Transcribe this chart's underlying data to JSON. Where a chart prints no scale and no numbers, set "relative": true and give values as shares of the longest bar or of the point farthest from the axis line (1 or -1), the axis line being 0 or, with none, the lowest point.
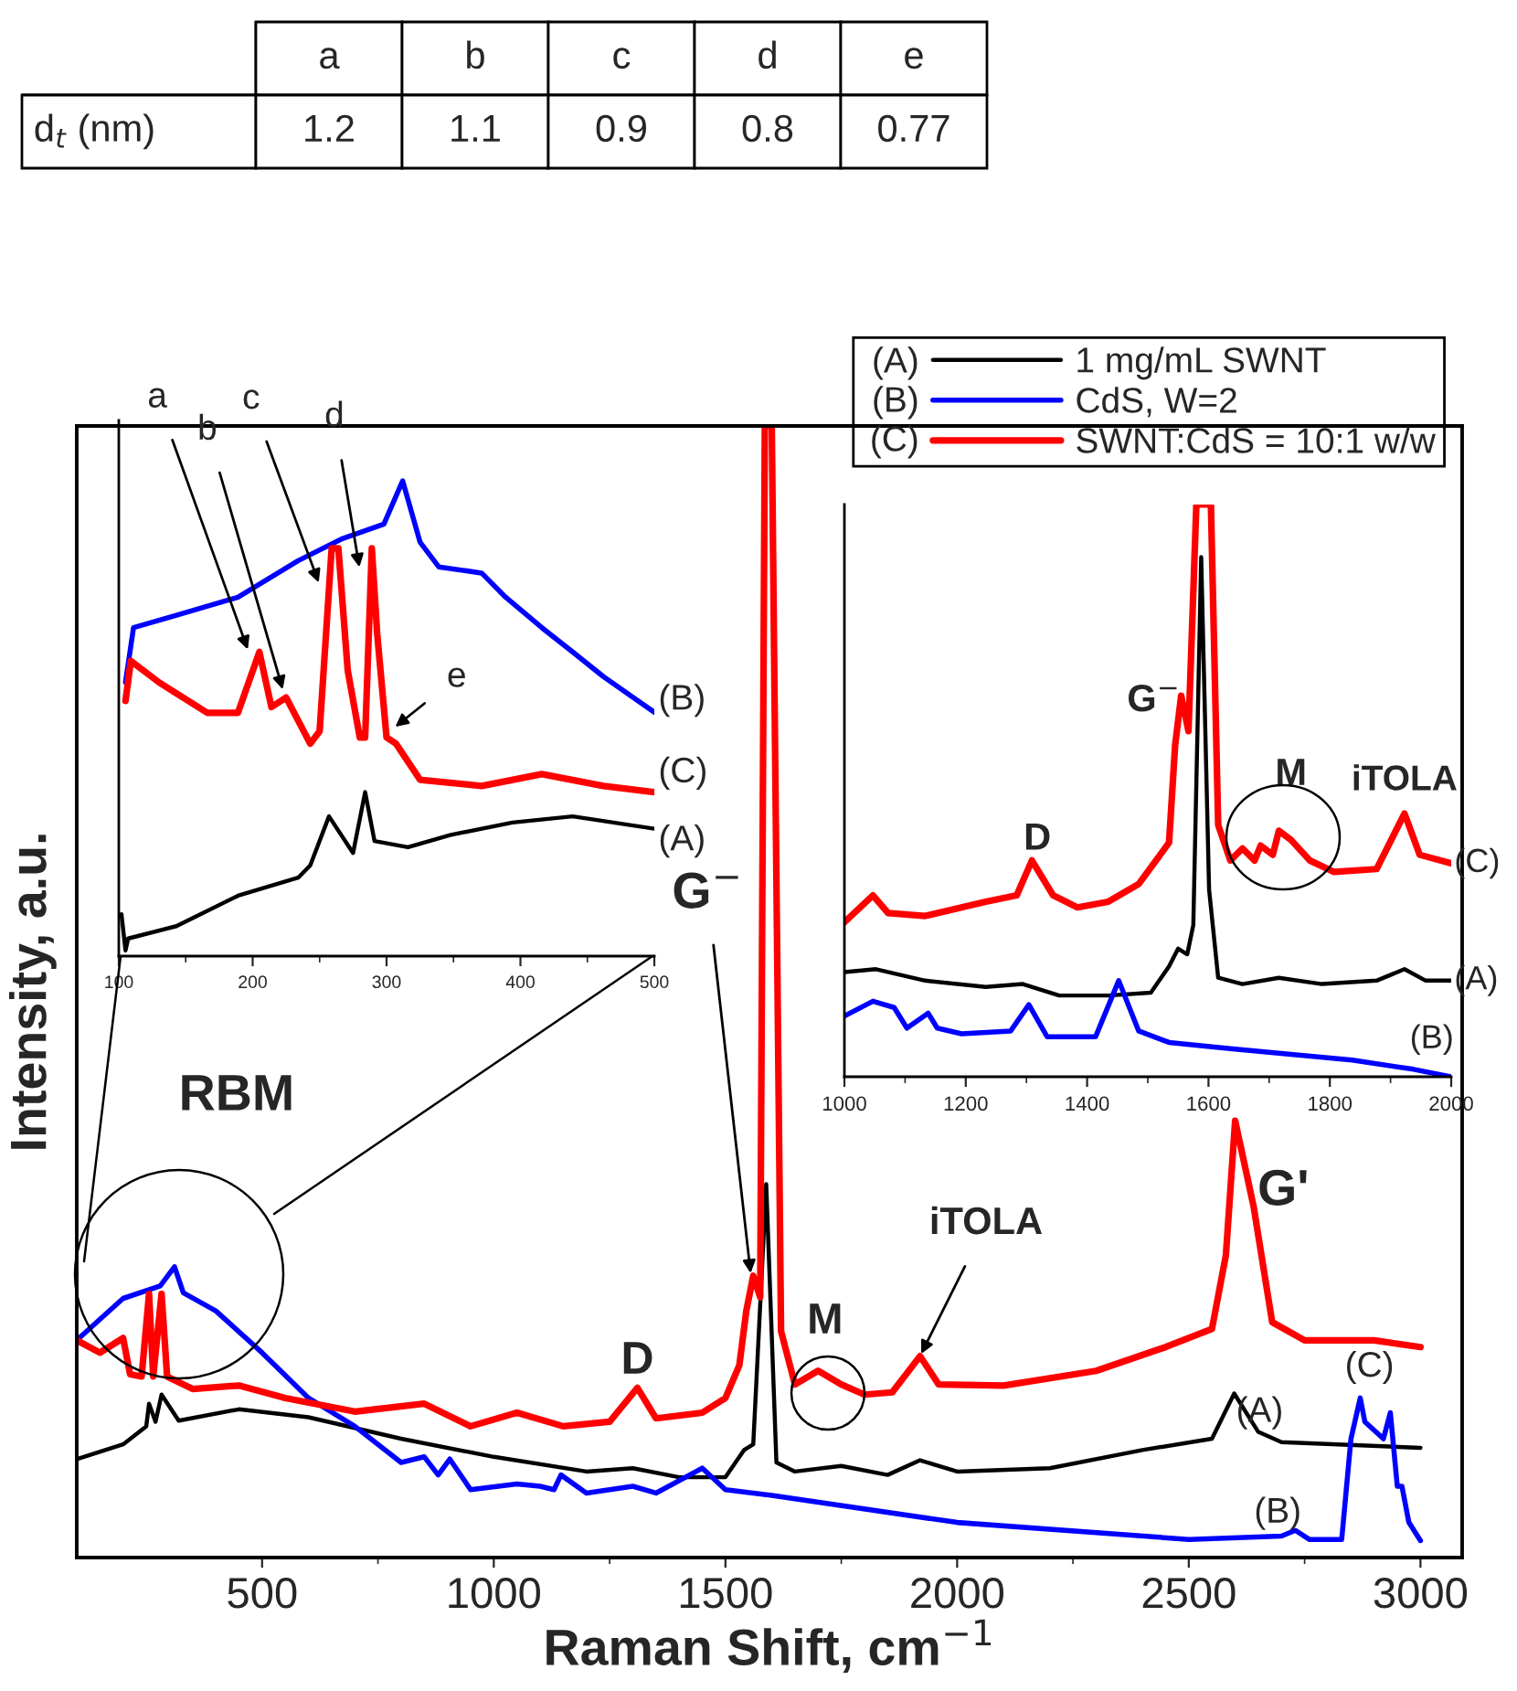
{
  "chart_data": [
    {
      "type": "other",
      "categories": [
        "a",
        "b",
        "c",
        "d",
        "e"
      ],
      "values": [
        1.2,
        1.1,
        0.9,
        0.8,
        0.77
      ],
      "data_labels": true,
      "ylabel": "d$_{t}$ (nm)"
    },
    {
      "type": "line",
      "relative": true,
      "xlabel": "Raman Shift, cm$^{−1}$",
      "ylabel": "Intensity, a.u.",
      "xlim": [
        100,
        3090
      ],
      "xticks": [
        500,
        1000,
        1500,
        2000,
        2500,
        3000
      ],
      "legend": "top right",
      "tick_labels": "x",
      "series": [
        {
          "name": "1 mg/mL SWNT",
          "color": "#000000",
          "x": [
            100,
            200,
            250,
            256,
            270,
            283,
            320,
            450,
            600,
            800,
            1000,
            1200,
            1300,
            1400,
            1500,
            1540,
            1560,
            1588,
            1610,
            1650,
            1750,
            1850,
            1920,
            2000,
            2200,
            2400,
            2550,
            2598,
            2650,
            2700,
            3000
          ],
          "values": [
            0.087,
            0.1,
            0.116,
            0.136,
            0.12,
            0.144,
            0.121,
            0.131,
            0.124,
            0.105,
            0.089,
            0.076,
            0.079,
            0.071,
            0.071,
            0.095,
            0.1,
            0.33,
            0.084,
            0.076,
            0.081,
            0.073,
            0.086,
            0.076,
            0.079,
            0.095,
            0.105,
            0.145,
            0.111,
            0.102,
            0.097
          ]
        },
        {
          "name": "CdS, W=2",
          "color": "#0000ff",
          "x": [
            100,
            200,
            280,
            311,
            330,
            400,
            500,
            600,
            700,
            800,
            850,
            880,
            905,
            950,
            1050,
            1100,
            1130,
            1145,
            1200,
            1300,
            1350,
            1450,
            1500,
            1600,
            2000,
            2500,
            2700,
            2730,
            2760,
            2830,
            2850,
            2870,
            2880,
            2920,
            2935,
            2950,
            2960,
            2975,
            3000
          ],
          "values": [
            0.192,
            0.229,
            0.24,
            0.257,
            0.234,
            0.218,
            0.181,
            0.141,
            0.116,
            0.084,
            0.089,
            0.073,
            0.087,
            0.06,
            0.065,
            0.063,
            0.06,
            0.073,
            0.057,
            0.063,
            0.057,
            0.079,
            0.06,
            0.055,
            0.031,
            0.016,
            0.019,
            0.024,
            0.016,
            0.016,
            0.105,
            0.141,
            0.12,
            0.105,
            0.128,
            0.063,
            0.063,
            0.031,
            0.015
          ]
        },
        {
          "name": "SWNT:CdS = 10:1 w/w",
          "color": "#ff0000",
          "x": [
            100,
            150,
            200,
            215,
            240,
            256,
            265,
            283,
            295,
            350,
            450,
            550,
            700,
            850,
            950,
            1050,
            1150,
            1250,
            1310,
            1350,
            1450,
            1500,
            1530,
            1545,
            1560,
            1575,
            1585,
            1600,
            1620,
            1650,
            1700,
            1750,
            1800,
            1860,
            1920,
            1960,
            2100,
            2300,
            2450,
            2550,
            2580,
            2600,
            2640,
            2680,
            2750,
            2900,
            3000
          ],
          "values": [
            0.192,
            0.181,
            0.194,
            0.162,
            0.16,
            0.233,
            0.16,
            0.233,
            0.16,
            0.149,
            0.152,
            0.141,
            0.129,
            0.136,
            0.116,
            0.128,
            0.116,
            0.12,
            0.15,
            0.123,
            0.128,
            0.141,
            0.17,
            0.218,
            0.249,
            0.23,
            1.0,
            1.0,
            0.2,
            0.153,
            0.165,
            0.153,
            0.144,
            0.146,
            0.178,
            0.153,
            0.152,
            0.165,
            0.186,
            0.202,
            0.267,
            0.386,
            0.31,
            0.208,
            0.192,
            0.192,
            0.186
          ]
        }
      ],
      "annotations": [
        "RBM",
        {
          "text": "G$^{−}$",
          "x": 1555,
          "y": 0.249
        },
        "D",
        "M",
        {
          "text": "iTOLA",
          "x": 1920,
          "y": 0.178
        },
        "G'",
        "(A)",
        "(B)",
        "(C)",
        "(A)",
        "(B)",
        "(C)"
      ]
    },
    {
      "type": "line",
      "relative": true,
      "xlim": [
        100,
        500
      ],
      "xticks": [
        100,
        200,
        300,
        400,
        500
      ],
      "tick_labels": "x",
      "series": [
        {
          "color": "#0000ff",
          "x": [
            105,
            111,
            143,
            189,
            234,
            266,
            298,
            312,
            325,
            339,
            371,
            389,
            416,
            439,
            462,
            500
          ],
          "values": [
            0.576,
            0.691,
            0.717,
            0.755,
            0.832,
            0.877,
            0.909,
            1.0,
            0.871,
            0.819,
            0.806,
            0.755,
            0.691,
            0.64,
            0.588,
            0.513
          ]
        },
        {
          "color": "#ff0000",
          "x": [
            105,
            109,
            130,
            166,
            189,
            205,
            214,
            225,
            243,
            250,
            259,
            264,
            271,
            280,
            284,
            289,
            293,
            300,
            307,
            325,
            371,
            416,
            462,
            500
          ],
          "values": [
            0.537,
            0.621,
            0.576,
            0.512,
            0.512,
            0.64,
            0.524,
            0.544,
            0.447,
            0.473,
            0.858,
            0.858,
            0.601,
            0.46,
            0.46,
            0.858,
            0.678,
            0.46,
            0.447,
            0.371,
            0.358,
            0.383,
            0.358,
            0.345
          ]
        },
        {
          "color": "#000000",
          "x": [
            102,
            105,
            107,
            143,
            189,
            234,
            243,
            257,
            275,
            284,
            291,
            316,
            348,
            394,
            439,
            500
          ],
          "values": [
            0.088,
            0.012,
            0.037,
            0.063,
            0.127,
            0.165,
            0.191,
            0.294,
            0.217,
            0.345,
            0.242,
            0.229,
            0.255,
            0.281,
            0.294,
            0.268
          ]
        }
      ],
      "annotations": [
        {
          "text": "a",
          "x": 197,
          "y": 0.64
        },
        {
          "text": "b",
          "x": 223,
          "y": 0.556
        },
        {
          "text": "c",
          "x": 250,
          "y": 0.781
        },
        {
          "text": "d",
          "x": 280,
          "y": 0.813
        },
        {
          "text": "e",
          "x": 305,
          "y": 0.479
        },
        "(B)",
        "(C)",
        "(A)"
      ]
    },
    {
      "type": "line",
      "relative": true,
      "xlim": [
        1000,
        2000
      ],
      "xticks": [
        1000,
        1200,
        1400,
        1600,
        1800,
        2000
      ],
      "tick_labels": "x",
      "series": [
        {
          "color": "#ff0000",
          "x": [
            1000,
            1047,
            1072,
            1133,
            1233,
            1284,
            1309,
            1344,
            1384,
            1435,
            1485,
            1535,
            1545,
            1555,
            1567,
            1580,
            1604,
            1616,
            1636,
            1656,
            1676,
            1686,
            1706,
            1716,
            1736,
            1767,
            1807,
            1877,
            1923,
            1948,
            2000
          ],
          "values": [
            0.27,
            0.317,
            0.286,
            0.281,
            0.306,
            0.317,
            0.378,
            0.317,
            0.296,
            0.306,
            0.337,
            0.409,
            0.579,
            0.666,
            0.604,
            1.0,
            1.0,
            0.44,
            0.378,
            0.399,
            0.378,
            0.404,
            0.388,
            0.43,
            0.414,
            0.378,
            0.358,
            0.363,
            0.46,
            0.388,
            0.373
          ]
        },
        {
          "color": "#000000",
          "x": [
            1000,
            1052,
            1133,
            1233,
            1294,
            1354,
            1435,
            1505,
            1535,
            1550,
            1565,
            1575,
            1588,
            1601,
            1616,
            1656,
            1716,
            1787,
            1877,
            1923,
            1958,
            2000
          ],
          "values": [
            0.183,
            0.188,
            0.168,
            0.157,
            0.162,
            0.142,
            0.142,
            0.147,
            0.193,
            0.224,
            0.214,
            0.265,
            0.908,
            0.327,
            0.173,
            0.162,
            0.173,
            0.162,
            0.168,
            0.188,
            0.168,
            0.168
          ]
        },
        {
          "color": "#0000ff",
          "x": [
            1000,
            1047,
            1082,
            1103,
            1138,
            1153,
            1193,
            1274,
            1304,
            1334,
            1414,
            1452,
            1485,
            1535,
            1636,
            1736,
            1837,
            1938,
            2000
          ],
          "values": [
            0.106,
            0.132,
            0.121,
            0.085,
            0.111,
            0.085,
            0.075,
            0.08,
            0.126,
            0.07,
            0.07,
            0.168,
            0.08,
            0.06,
            0.049,
            0.039,
            0.029,
            0.013,
            0.0
          ]
        }
      ],
      "annotations": [
        "D",
        "G$^{−}$",
        "M",
        "iTOLA",
        "(C)",
        "(A)",
        "(B)"
      ]
    }
  ]
}
